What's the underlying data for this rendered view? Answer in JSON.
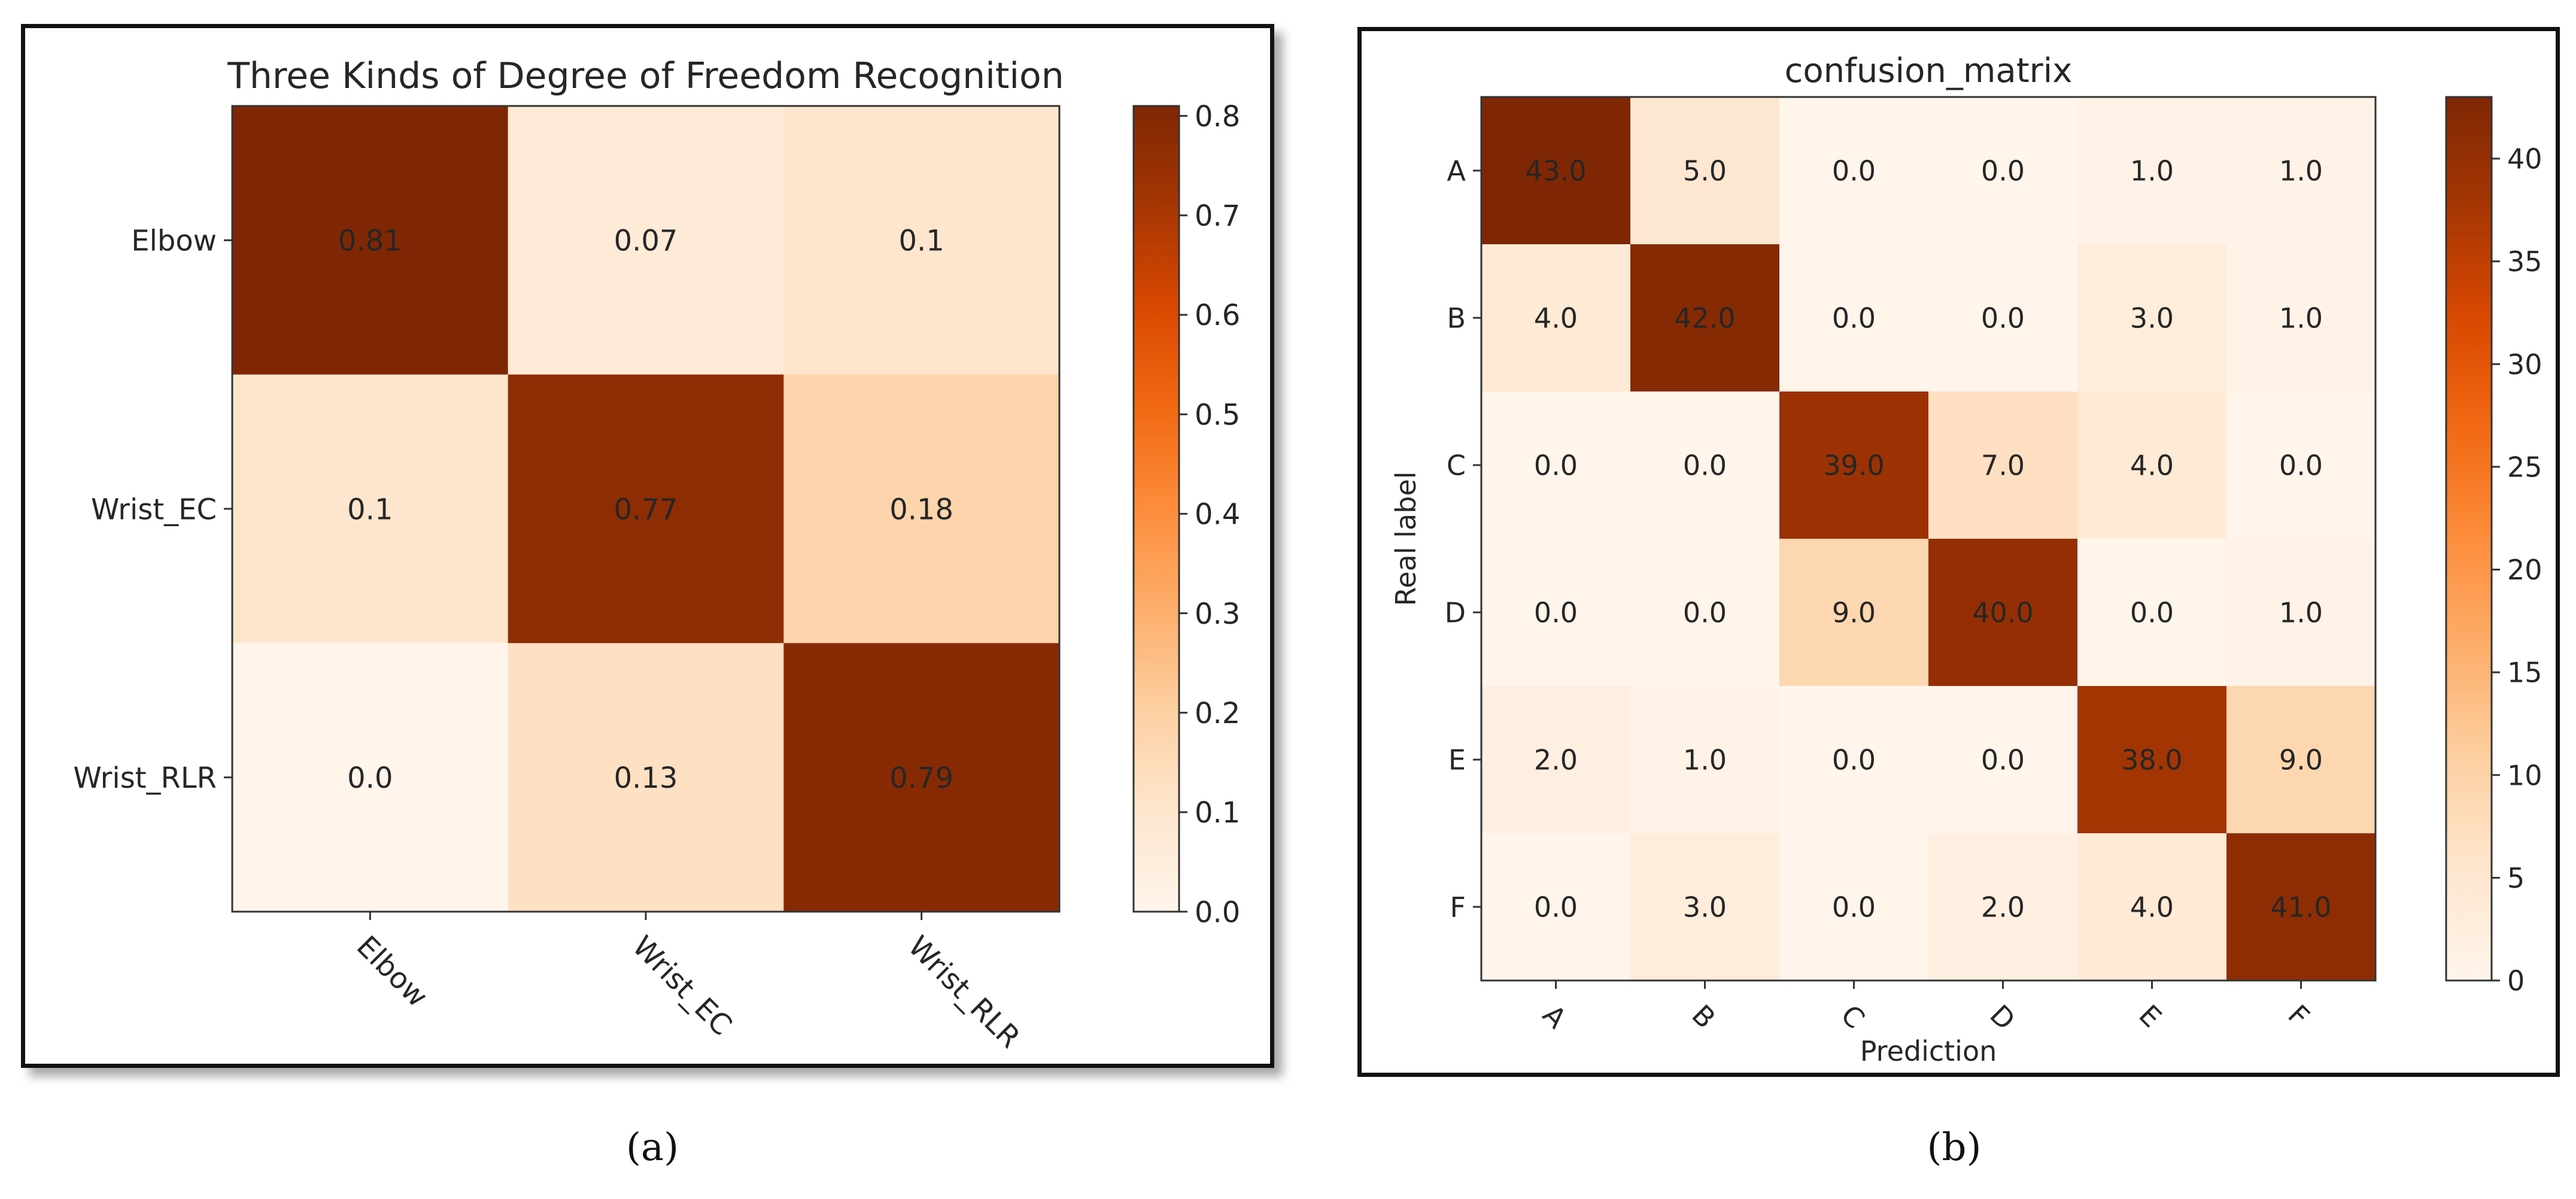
{
  "colors": {
    "cmap": [
      "#fff5eb",
      "#fee6ce",
      "#fdd0a2",
      "#fdae6b",
      "#fd8d3c",
      "#f16913",
      "#d94801",
      "#a63603",
      "#7f2704"
    ],
    "text": "#262626",
    "frame": "#111111"
  },
  "captions": {
    "a": "(a)",
    "b": "(b)"
  },
  "chart_data": [
    {
      "type": "heatmap",
      "title": "Three Kinds of Degree of Freedom Recognition",
      "xlabel": "",
      "ylabel": "",
      "x_categories": [
        "Elbow",
        "Wrist_EC",
        "Wrist_RLR"
      ],
      "y_categories": [
        "Elbow",
        "Wrist_EC",
        "Wrist_RLR"
      ],
      "values": [
        [
          0.81,
          0.07,
          0.1
        ],
        [
          0.1,
          0.77,
          0.18
        ],
        [
          0.0,
          0.13,
          0.79
        ]
      ],
      "labels": [
        [
          "0.81",
          "0.07",
          "0.1"
        ],
        [
          "0.1",
          "0.77",
          "0.18"
        ],
        [
          "0.0",
          "0.13",
          "0.79"
        ]
      ],
      "vmin": 0.0,
      "vmax": 0.81,
      "colorbar_ticks": [
        0.0,
        0.1,
        0.2,
        0.3,
        0.4,
        0.5,
        0.6,
        0.7,
        0.8
      ],
      "colorbar_tick_labels": [
        "0.0",
        "0.1",
        "0.2",
        "0.3",
        "0.4",
        "0.5",
        "0.6",
        "0.7",
        "0.8"
      ]
    },
    {
      "type": "heatmap",
      "title": "confusion_matrix",
      "xlabel": "Prediction",
      "ylabel": "Real label",
      "x_categories": [
        "A",
        "B",
        "C",
        "D",
        "E",
        "F"
      ],
      "y_categories": [
        "A",
        "B",
        "C",
        "D",
        "E",
        "F"
      ],
      "values": [
        [
          43,
          5,
          0,
          0,
          1,
          1
        ],
        [
          4,
          42,
          0,
          0,
          3,
          1
        ],
        [
          0,
          0,
          39,
          7,
          4,
          0
        ],
        [
          0,
          0,
          9,
          40,
          0,
          1
        ],
        [
          2,
          1,
          0,
          0,
          38,
          9
        ],
        [
          0,
          3,
          0,
          2,
          4,
          41
        ]
      ],
      "labels": [
        [
          "43.0",
          "5.0",
          "0.0",
          "0.0",
          "1.0",
          "1.0"
        ],
        [
          "4.0",
          "42.0",
          "0.0",
          "0.0",
          "3.0",
          "1.0"
        ],
        [
          "0.0",
          "0.0",
          "39.0",
          "7.0",
          "4.0",
          "0.0"
        ],
        [
          "0.0",
          "0.0",
          "9.0",
          "40.0",
          "0.0",
          "1.0"
        ],
        [
          "2.0",
          "1.0",
          "0.0",
          "0.0",
          "38.0",
          "9.0"
        ],
        [
          "0.0",
          "3.0",
          "0.0",
          "2.0",
          "4.0",
          "41.0"
        ]
      ],
      "vmin": 0,
      "vmax": 43,
      "colorbar_ticks": [
        0,
        5,
        10,
        15,
        20,
        25,
        30,
        35,
        40
      ],
      "colorbar_tick_labels": [
        "0",
        "5",
        "10",
        "15",
        "20",
        "25",
        "30",
        "35",
        "40"
      ]
    }
  ]
}
